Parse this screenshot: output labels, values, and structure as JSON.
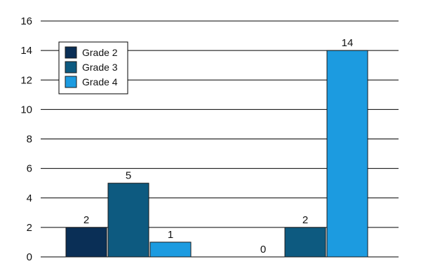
{
  "chart_data": {
    "type": "bar",
    "categories": [
      "",
      ""
    ],
    "series": [
      {
        "name": "Grade 2",
        "values": [
          2,
          0
        ],
        "color": "#0a2f56"
      },
      {
        "name": "Grade 3",
        "values": [
          5,
          2
        ],
        "color": "#0d5a80"
      },
      {
        "name": "Grade 4",
        "values": [
          1,
          14
        ],
        "color": "#1c9be0"
      }
    ],
    "ylim": [
      0,
      16
    ],
    "yticks": [
      0,
      2,
      4,
      6,
      8,
      10,
      12,
      14,
      16
    ],
    "data_labels": [
      [
        "2",
        "0"
      ],
      [
        "5",
        "2"
      ],
      [
        "1",
        "14"
      ]
    ],
    "grid": true,
    "legend_position": "top-left"
  }
}
